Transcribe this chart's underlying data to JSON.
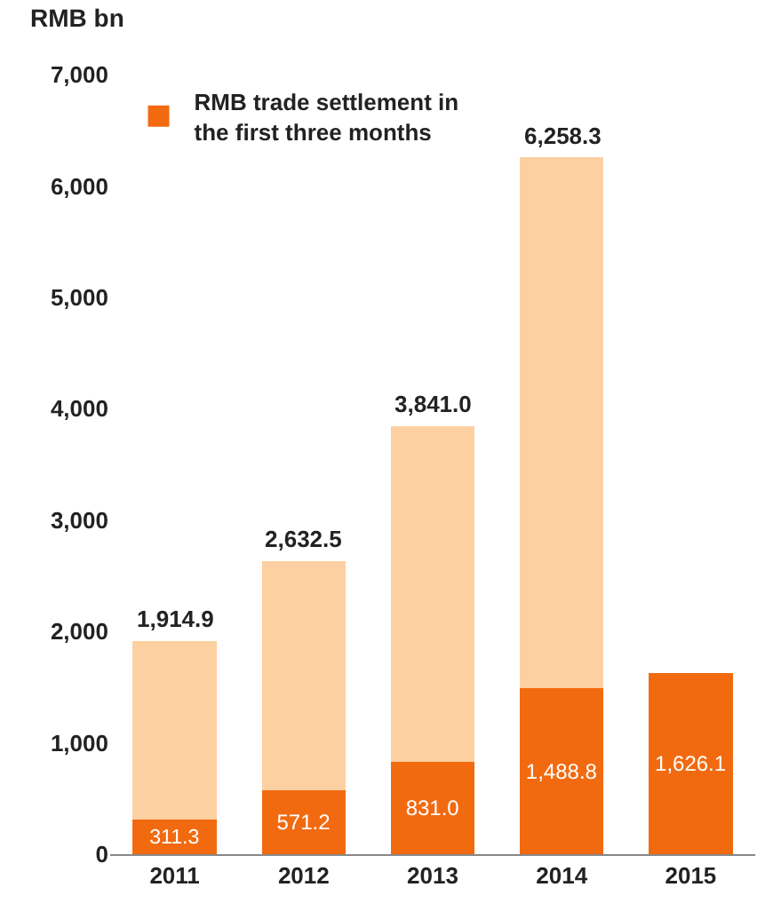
{
  "chart_data": {
    "type": "bar",
    "stacked": true,
    "ylabel": "RMB bn",
    "categories": [
      "2011",
      "2012",
      "2013",
      "2014",
      "2015"
    ],
    "series": [
      {
        "name": "RMB trade settlement in the first three months",
        "color": "#f26a10",
        "values": [
          311.3,
          571.2,
          831.0,
          1488.8,
          1626.1
        ],
        "value_labels": [
          "311.3",
          "571.2",
          "831.0",
          "1,488.8",
          "1,626.1"
        ]
      },
      {
        "color": "#fdd0a2",
        "values": [
          1603.6,
          2061.3,
          3010.0,
          4769.5,
          null
        ]
      }
    ],
    "totals": [
      "1,914.9",
      "2,632.5",
      "3,841.0",
      "6,258.3",
      null
    ],
    "ylim": [
      0,
      7000
    ],
    "yticks": [
      0,
      {
        "value": 1000,
        "label": "1,000"
      },
      {
        "value": 2000,
        "label": "2,000"
      },
      {
        "value": 3000,
        "label": "3,000"
      },
      {
        "value": 4000,
        "label": "4,000"
      },
      {
        "value": 5000,
        "label": "5,000"
      },
      {
        "value": 6000,
        "label": "6,000"
      },
      {
        "value": 7000,
        "label": "7,000"
      }
    ],
    "legend": "top left"
  }
}
